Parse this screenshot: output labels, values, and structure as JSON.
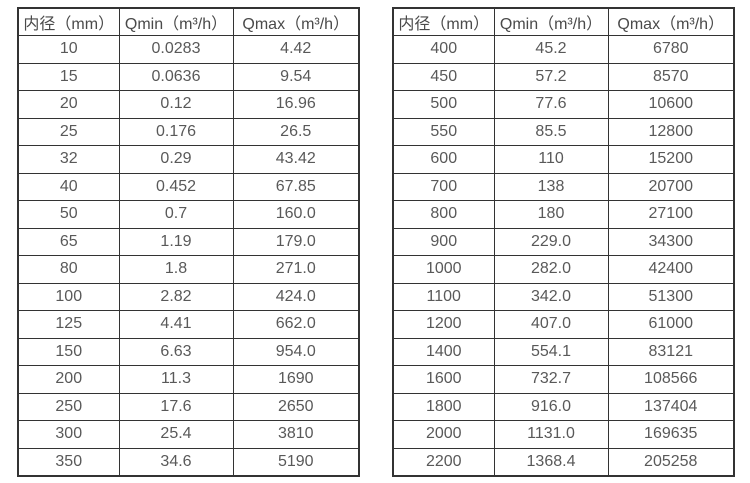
{
  "colors": {
    "background": "#ffffff",
    "border": "#333333",
    "header_text": "#4a4a4a",
    "cell_text": "#595959"
  },
  "tables": [
    {
      "name": "small-diameter-flow-table",
      "headers": [
        "内径（mm）",
        "Qmin（m³/h）",
        "Qmax（m³/h）"
      ],
      "rows": [
        [
          "10",
          "0.0283",
          "4.42"
        ],
        [
          "15",
          "0.0636",
          "9.54"
        ],
        [
          "20",
          "0.12",
          "16.96"
        ],
        [
          "25",
          "0.176",
          "26.5"
        ],
        [
          "32",
          "0.29",
          "43.42"
        ],
        [
          "40",
          "0.452",
          "67.85"
        ],
        [
          "50",
          "0.7",
          "160.0"
        ],
        [
          "65",
          "1.19",
          "179.0"
        ],
        [
          "80",
          "1.8",
          "271.0"
        ],
        [
          "100",
          "2.82",
          "424.0"
        ],
        [
          "125",
          "4.41",
          "662.0"
        ],
        [
          "150",
          "6.63",
          "954.0"
        ],
        [
          "200",
          "11.3",
          "1690"
        ],
        [
          "250",
          "17.6",
          "2650"
        ],
        [
          "300",
          "25.4",
          "3810"
        ],
        [
          "350",
          "34.6",
          "5190"
        ]
      ]
    },
    {
      "name": "large-diameter-flow-table",
      "headers": [
        "内径（mm）",
        "Qmin（m³/h）",
        "Qmax（m³/h）"
      ],
      "rows": [
        [
          "400",
          "45.2",
          "6780"
        ],
        [
          "450",
          "57.2",
          "8570"
        ],
        [
          "500",
          "77.6",
          "10600"
        ],
        [
          "550",
          "85.5",
          "12800"
        ],
        [
          "600",
          "110",
          "15200"
        ],
        [
          "700",
          "138",
          "20700"
        ],
        [
          "800",
          "180",
          "27100"
        ],
        [
          "900",
          "229.0",
          "34300"
        ],
        [
          "1000",
          "282.0",
          "42400"
        ],
        [
          "1100",
          "342.0",
          "51300"
        ],
        [
          "1200",
          "407.0",
          "61000"
        ],
        [
          "1400",
          "554.1",
          "83121"
        ],
        [
          "1600",
          "732.7",
          "108566"
        ],
        [
          "1800",
          "916.0",
          "137404"
        ],
        [
          "2000",
          "1131.0",
          "169635"
        ],
        [
          "2200",
          "1368.4",
          "205258"
        ]
      ]
    }
  ]
}
